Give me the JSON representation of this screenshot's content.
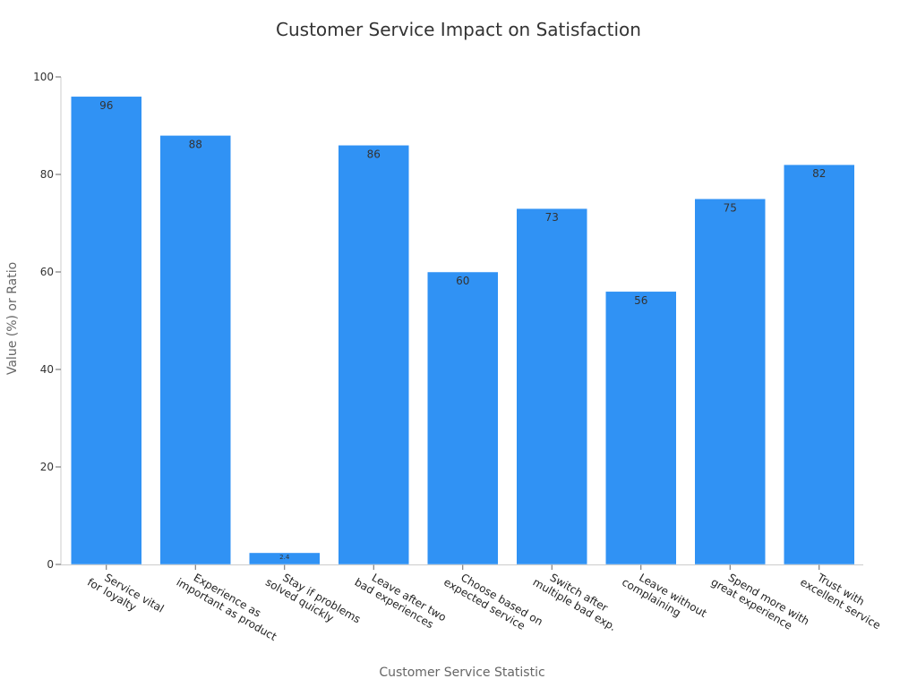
{
  "chart_data": {
    "type": "bar",
    "title": "Customer Service Impact on Satisfaction",
    "xlabel": "Customer Service Statistic",
    "ylabel": "Value (%) or Ratio",
    "ylim": [
      0,
      100
    ],
    "yticks": [
      0,
      20,
      40,
      60,
      80,
      100
    ],
    "grid": false,
    "bar_color": "#3092f4",
    "categories": [
      [
        "Service vital",
        "for loyalty"
      ],
      [
        "Experience as",
        "important as product"
      ],
      [
        "Stay if problems",
        "solved quickly"
      ],
      [
        "Leave after two",
        "bad experiences"
      ],
      [
        "Choose based on",
        "expected service"
      ],
      [
        "Switch after",
        "multiple bad exp."
      ],
      [
        "Leave without",
        "complaining"
      ],
      [
        "Spend more with",
        "great experience"
      ],
      [
        "Trust with",
        "excellent service"
      ]
    ],
    "values": [
      96,
      88,
      2.4,
      86,
      60,
      73,
      56,
      75,
      82
    ],
    "data_labels": [
      "96",
      "88",
      "2.4",
      "86",
      "60",
      "73",
      "56",
      "75",
      "82"
    ]
  }
}
